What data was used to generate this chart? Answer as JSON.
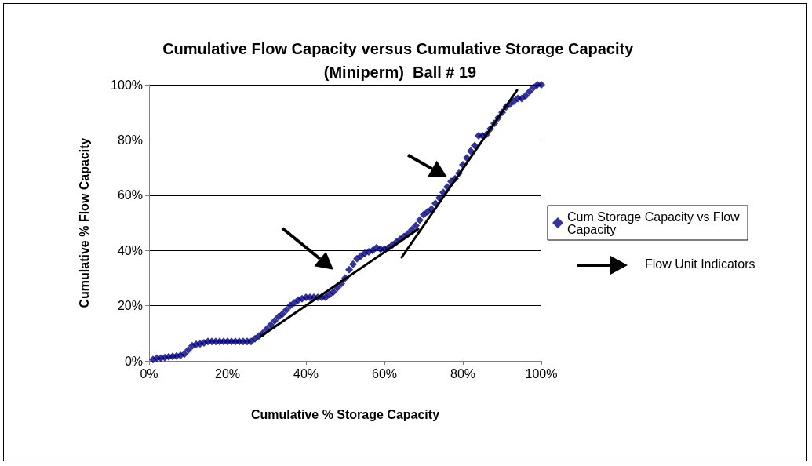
{
  "chart_data": {
    "type": "scatter",
    "title": "Cumulative Flow Capacity versus Cumulative Storage Capacity (Miniperm)  Ball # 19",
    "xlabel": "Cumulative % Storage Capacity",
    "ylabel": "Cumulative % Flow Capacity",
    "xlim": [
      0,
      100
    ],
    "ylim": [
      0,
      100
    ],
    "xticks": [
      {
        "value": 0,
        "label": "0%"
      },
      {
        "value": 20,
        "label": "20%"
      },
      {
        "value": 40,
        "label": "40%"
      },
      {
        "value": 60,
        "label": "60%"
      },
      {
        "value": 80,
        "label": "80%"
      },
      {
        "value": 100,
        "label": "100%"
      }
    ],
    "yticks": [
      {
        "value": 0,
        "label": "0%"
      },
      {
        "value": 20,
        "label": "20%"
      },
      {
        "value": 40,
        "label": "40%"
      },
      {
        "value": 60,
        "label": "60%"
      },
      {
        "value": 80,
        "label": "80%"
      },
      {
        "value": 100,
        "label": "100%"
      }
    ],
    "grid": "y",
    "legend": "right",
    "marker": "diamond",
    "annotations": [
      "Flow Unit Indicators"
    ],
    "series": [
      {
        "name": "Cum Storage Capacity vs Flow Capacity",
        "color": "#000080",
        "x": [
          1,
          2,
          3,
          4,
          5,
          6,
          7,
          8,
          9,
          10,
          11,
          12,
          13,
          14,
          15,
          16,
          17,
          18,
          19,
          20,
          21,
          22,
          23,
          24,
          25,
          26,
          27,
          28,
          29,
          30,
          31,
          32,
          33,
          34,
          35,
          36,
          37,
          38,
          39,
          40,
          41,
          42,
          43,
          44,
          45,
          46,
          47,
          48,
          49,
          50,
          51,
          52,
          53,
          54,
          55,
          56,
          57,
          58,
          59,
          60,
          61,
          62,
          63,
          64,
          65,
          66,
          67,
          68,
          69,
          70,
          71,
          72,
          73,
          74,
          75,
          76,
          77,
          78,
          79,
          80,
          81,
          82,
          83,
          84,
          85,
          86,
          87,
          88,
          89,
          90,
          91,
          92,
          93,
          94,
          95,
          96,
          97,
          98,
          99,
          100
        ],
        "values": [
          0.5,
          1,
          1,
          1.2,
          1.5,
          1.6,
          1.8,
          2,
          2.5,
          4,
          5.5,
          6,
          6.2,
          6.5,
          7,
          7,
          7,
          7,
          7,
          7,
          7,
          7,
          7,
          7,
          7,
          7,
          8,
          9,
          10,
          11.5,
          13,
          14.5,
          16,
          17,
          18.5,
          20,
          21,
          22,
          22.5,
          23,
          23,
          23,
          23,
          23,
          23,
          24,
          25,
          26.5,
          28,
          30,
          33,
          35,
          37,
          38,
          39,
          39.5,
          40,
          41,
          40.5,
          40.5,
          41,
          42,
          43,
          44,
          45,
          46,
          47.5,
          49,
          51,
          53,
          54,
          55,
          57,
          59,
          61,
          63,
          65,
          66,
          68,
          71,
          73.5,
          76,
          78,
          81.5,
          81.5,
          82,
          84,
          86,
          88,
          90,
          92,
          93,
          94,
          95,
          95,
          96,
          97.5,
          99,
          100,
          100
        ]
      },
      {
        "type": "line",
        "color": "#000000",
        "marker": "none",
        "x": [
          28.4,
          68.6
        ],
        "values": [
          8.8,
          47.7
        ]
      },
      {
        "type": "line",
        "color": "#000000",
        "marker": "none",
        "x": [
          64.4,
          93.8
        ],
        "values": [
          37.5,
          98
        ]
      }
    ]
  }
}
